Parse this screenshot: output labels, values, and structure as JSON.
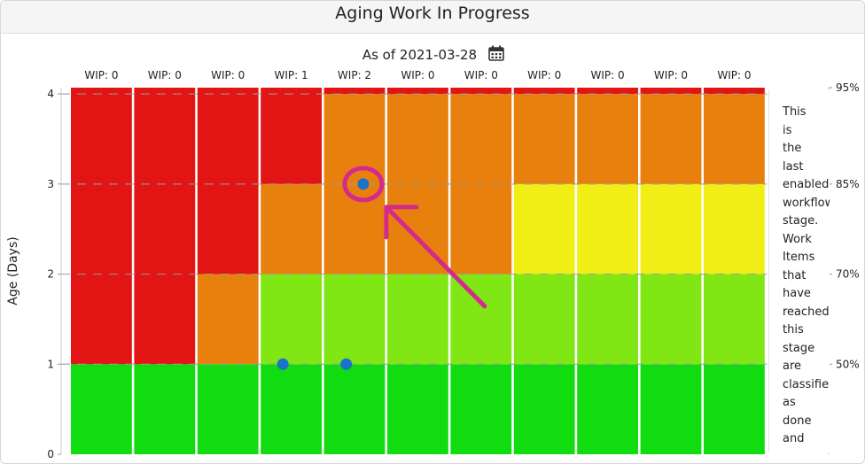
{
  "title": "Aging Work In Progress",
  "subtitle": "As of 2021-03-28",
  "calendar_icon": "calendar-icon",
  "chart_data": {
    "type": "scatter",
    "ylabel": "Age (Days)",
    "ylim": [
      0,
      4.07
    ],
    "y_ticks": [
      "0",
      "1",
      "2",
      "3",
      "4"
    ],
    "columns": [
      "WIP: 0",
      "WIP: 0",
      "WIP: 0",
      "WIP: 1",
      "WIP: 2",
      "WIP: 0",
      "WIP: 0",
      "WIP: 0",
      "WIP: 0",
      "WIP: 0",
      "WIP: 0"
    ],
    "percentile_labels": [
      {
        "label": "50%",
        "y": 1
      },
      {
        "label": "70%",
        "y": 2
      },
      {
        "label": "85%",
        "y": 3
      },
      {
        "label": "95%",
        "y": 4.07
      }
    ],
    "band_colors": {
      "green": "#10dc10",
      "light_green": "#80e614",
      "yellow": "#f0ee14",
      "orange": "#e8800e",
      "red": "#e31414"
    },
    "column_bands": [
      [
        {
          "from": 0,
          "to": 1,
          "color": "green"
        },
        {
          "from": 1,
          "to": 4.07,
          "color": "red"
        }
      ],
      [
        {
          "from": 0,
          "to": 1,
          "color": "green"
        },
        {
          "from": 1,
          "to": 4.07,
          "color": "red"
        }
      ],
      [
        {
          "from": 0,
          "to": 1,
          "color": "green"
        },
        {
          "from": 1,
          "to": 2,
          "color": "orange"
        },
        {
          "from": 2,
          "to": 4.07,
          "color": "red"
        }
      ],
      [
        {
          "from": 0,
          "to": 1,
          "color": "green"
        },
        {
          "from": 1,
          "to": 2,
          "color": "light_green"
        },
        {
          "from": 2,
          "to": 3,
          "color": "orange"
        },
        {
          "from": 3,
          "to": 4.07,
          "color": "red"
        }
      ],
      [
        {
          "from": 0,
          "to": 1,
          "color": "green"
        },
        {
          "from": 1,
          "to": 2,
          "color": "light_green"
        },
        {
          "from": 2,
          "to": 4,
          "color": "orange"
        },
        {
          "from": 4,
          "to": 4.07,
          "color": "red"
        }
      ],
      [
        {
          "from": 0,
          "to": 1,
          "color": "green"
        },
        {
          "from": 1,
          "to": 2,
          "color": "light_green"
        },
        {
          "from": 2,
          "to": 4,
          "color": "orange"
        },
        {
          "from": 4,
          "to": 4.07,
          "color": "red"
        }
      ],
      [
        {
          "from": 0,
          "to": 1,
          "color": "green"
        },
        {
          "from": 1,
          "to": 2,
          "color": "light_green"
        },
        {
          "from": 2,
          "to": 4,
          "color": "orange"
        },
        {
          "from": 4,
          "to": 4.07,
          "color": "red"
        }
      ],
      [
        {
          "from": 0,
          "to": 1,
          "color": "green"
        },
        {
          "from": 1,
          "to": 2,
          "color": "light_green"
        },
        {
          "from": 2,
          "to": 3,
          "color": "yellow"
        },
        {
          "from": 3,
          "to": 4,
          "color": "orange"
        },
        {
          "from": 4,
          "to": 4.07,
          "color": "red"
        }
      ],
      [
        {
          "from": 0,
          "to": 1,
          "color": "green"
        },
        {
          "from": 1,
          "to": 2,
          "color": "light_green"
        },
        {
          "from": 2,
          "to": 3,
          "color": "yellow"
        },
        {
          "from": 3,
          "to": 4,
          "color": "orange"
        },
        {
          "from": 4,
          "to": 4.07,
          "color": "red"
        }
      ],
      [
        {
          "from": 0,
          "to": 1,
          "color": "green"
        },
        {
          "from": 1,
          "to": 2,
          "color": "light_green"
        },
        {
          "from": 2,
          "to": 3,
          "color": "yellow"
        },
        {
          "from": 3,
          "to": 4,
          "color": "orange"
        },
        {
          "from": 4,
          "to": 4.07,
          "color": "red"
        }
      ],
      [
        {
          "from": 0,
          "to": 1,
          "color": "green"
        },
        {
          "from": 1,
          "to": 2,
          "color": "light_green"
        },
        {
          "from": 2,
          "to": 3,
          "color": "yellow"
        },
        {
          "from": 3,
          "to": 4,
          "color": "orange"
        },
        {
          "from": 4,
          "to": 4.07,
          "color": "red"
        }
      ]
    ],
    "points": [
      {
        "column": 4,
        "offset": 0.35,
        "y": 1
      },
      {
        "column": 5,
        "offset": 0.35,
        "y": 1
      },
      {
        "column": 5,
        "offset": 0.62,
        "y": 3
      }
    ],
    "point_color": "#1a73c8",
    "gridlines": "dashed",
    "annotation": {
      "color": "#d42a8e",
      "shape": "circle-and-arrow",
      "target_point": 2
    }
  },
  "last_stage_note": "This is the last enabled workflow stage. Work Items that have reached this stage are classified as done and"
}
